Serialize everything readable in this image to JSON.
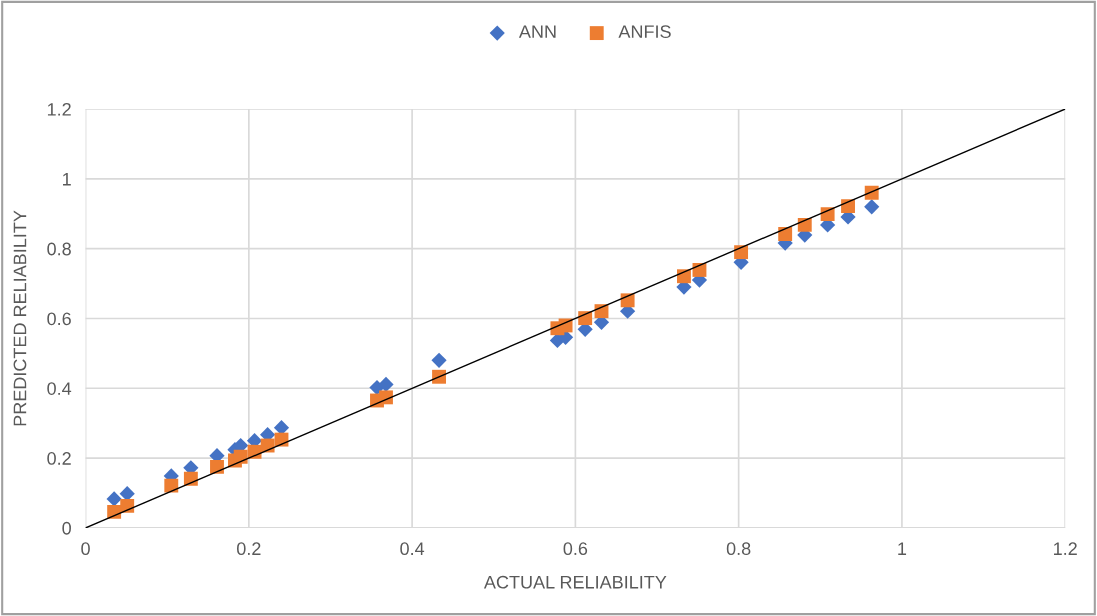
{
  "chart_data": {
    "type": "scatter",
    "xlabel": "ACTUAL RELIABILITY",
    "ylabel": "PREDICTED RELIABILITY",
    "x": [
      0.035,
      0.051,
      0.105,
      0.129,
      0.161,
      0.183,
      0.19,
      0.207,
      0.223,
      0.24,
      0.357,
      0.368,
      0.433,
      0.578,
      0.588,
      0.612,
      0.632,
      0.664,
      0.733,
      0.752,
      0.803,
      0.857,
      0.881,
      0.909,
      0.934,
      0.963
    ],
    "series": [
      {
        "name": "ANN",
        "color": "#4472c4",
        "marker": "diamond",
        "values": [
          0.083,
          0.098,
          0.149,
          0.172,
          0.207,
          0.224,
          0.236,
          0.25,
          0.267,
          0.287,
          0.402,
          0.411,
          0.48,
          0.537,
          0.546,
          0.569,
          0.589,
          0.621,
          0.69,
          0.71,
          0.761,
          0.816,
          0.839,
          0.868,
          0.891,
          0.92
        ]
      },
      {
        "name": "ANFIS",
        "color": "#ed7d31",
        "marker": "square",
        "values": [
          0.046,
          0.063,
          0.121,
          0.141,
          0.175,
          0.193,
          0.204,
          0.218,
          0.236,
          0.253,
          0.365,
          0.374,
          0.433,
          0.572,
          0.58,
          0.601,
          0.621,
          0.652,
          0.721,
          0.739,
          0.79,
          0.842,
          0.868,
          0.899,
          0.922,
          0.96
        ]
      },
      {
        "type": "line",
        "color": "#000000",
        "x": [
          0,
          1.2
        ],
        "values": [
          0,
          1.2
        ],
        "marker": "none"
      }
    ],
    "xlim": [
      0,
      1.2
    ],
    "ylim": [
      0,
      1.2
    ],
    "xticks": [
      0,
      0.2,
      0.4,
      0.6,
      0.8,
      1,
      1.2
    ],
    "yticks": [
      0,
      0.2,
      0.4,
      0.6,
      0.8,
      1,
      1.2
    ],
    "grid": true,
    "legend": "top"
  }
}
